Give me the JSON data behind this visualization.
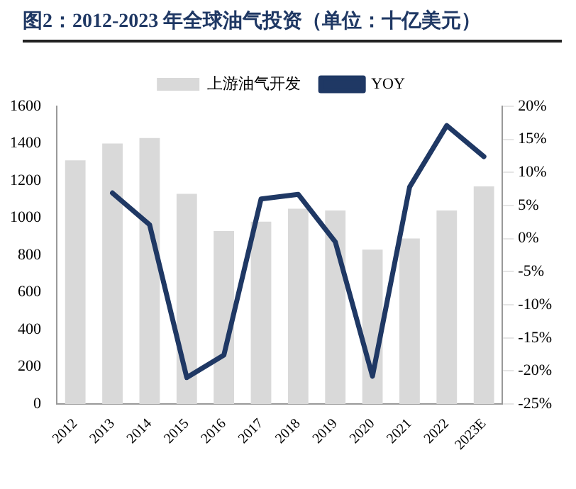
{
  "chart_data": {
    "type": "bar",
    "title": "图2：2012-2023 年全球油气投资（单位：十亿美元）",
    "categories": [
      "2012",
      "2013",
      "2014",
      "2015",
      "2016",
      "2017",
      "2018",
      "2019",
      "2020",
      "2021",
      "2022",
      "2023E"
    ],
    "series": [
      {
        "name": "上游油气开发",
        "color": "#d9d9d9",
        "values": [
          1310,
          1400,
          1430,
          1130,
          930,
          980,
          1050,
          1040,
          830,
          890,
          1040,
          1170
        ]
      },
      {
        "name": "YOY",
        "type": "line",
        "axis": "y2",
        "color": "#1f3864",
        "values": [
          null,
          6.9,
          2.1,
          -21,
          -17.6,
          6,
          6.7,
          -0.5,
          -20.8,
          7.8,
          17.1,
          12.4
        ]
      }
    ],
    "ylim": [
      0,
      1600
    ],
    "yticks": [
      0,
      200,
      400,
      600,
      800,
      1000,
      1200,
      1400,
      1600
    ],
    "y2lim": [
      -25,
      20
    ],
    "y2ticks": [
      {
        "value": -25,
        "label": "-25%"
      },
      {
        "value": -20,
        "label": "-20%"
      },
      {
        "value": -15,
        "label": "-15%"
      },
      {
        "value": -10,
        "label": "-10%"
      },
      {
        "value": -5,
        "label": "-5%"
      },
      {
        "value": 0,
        "label": "0%"
      },
      {
        "value": 5,
        "label": "5%"
      },
      {
        "value": 10,
        "label": "10%"
      },
      {
        "value": 15,
        "label": "15%"
      },
      {
        "value": 20,
        "label": "20%"
      }
    ],
    "legend": "top",
    "grid": false,
    "marker": "none",
    "line_style": "solid"
  }
}
